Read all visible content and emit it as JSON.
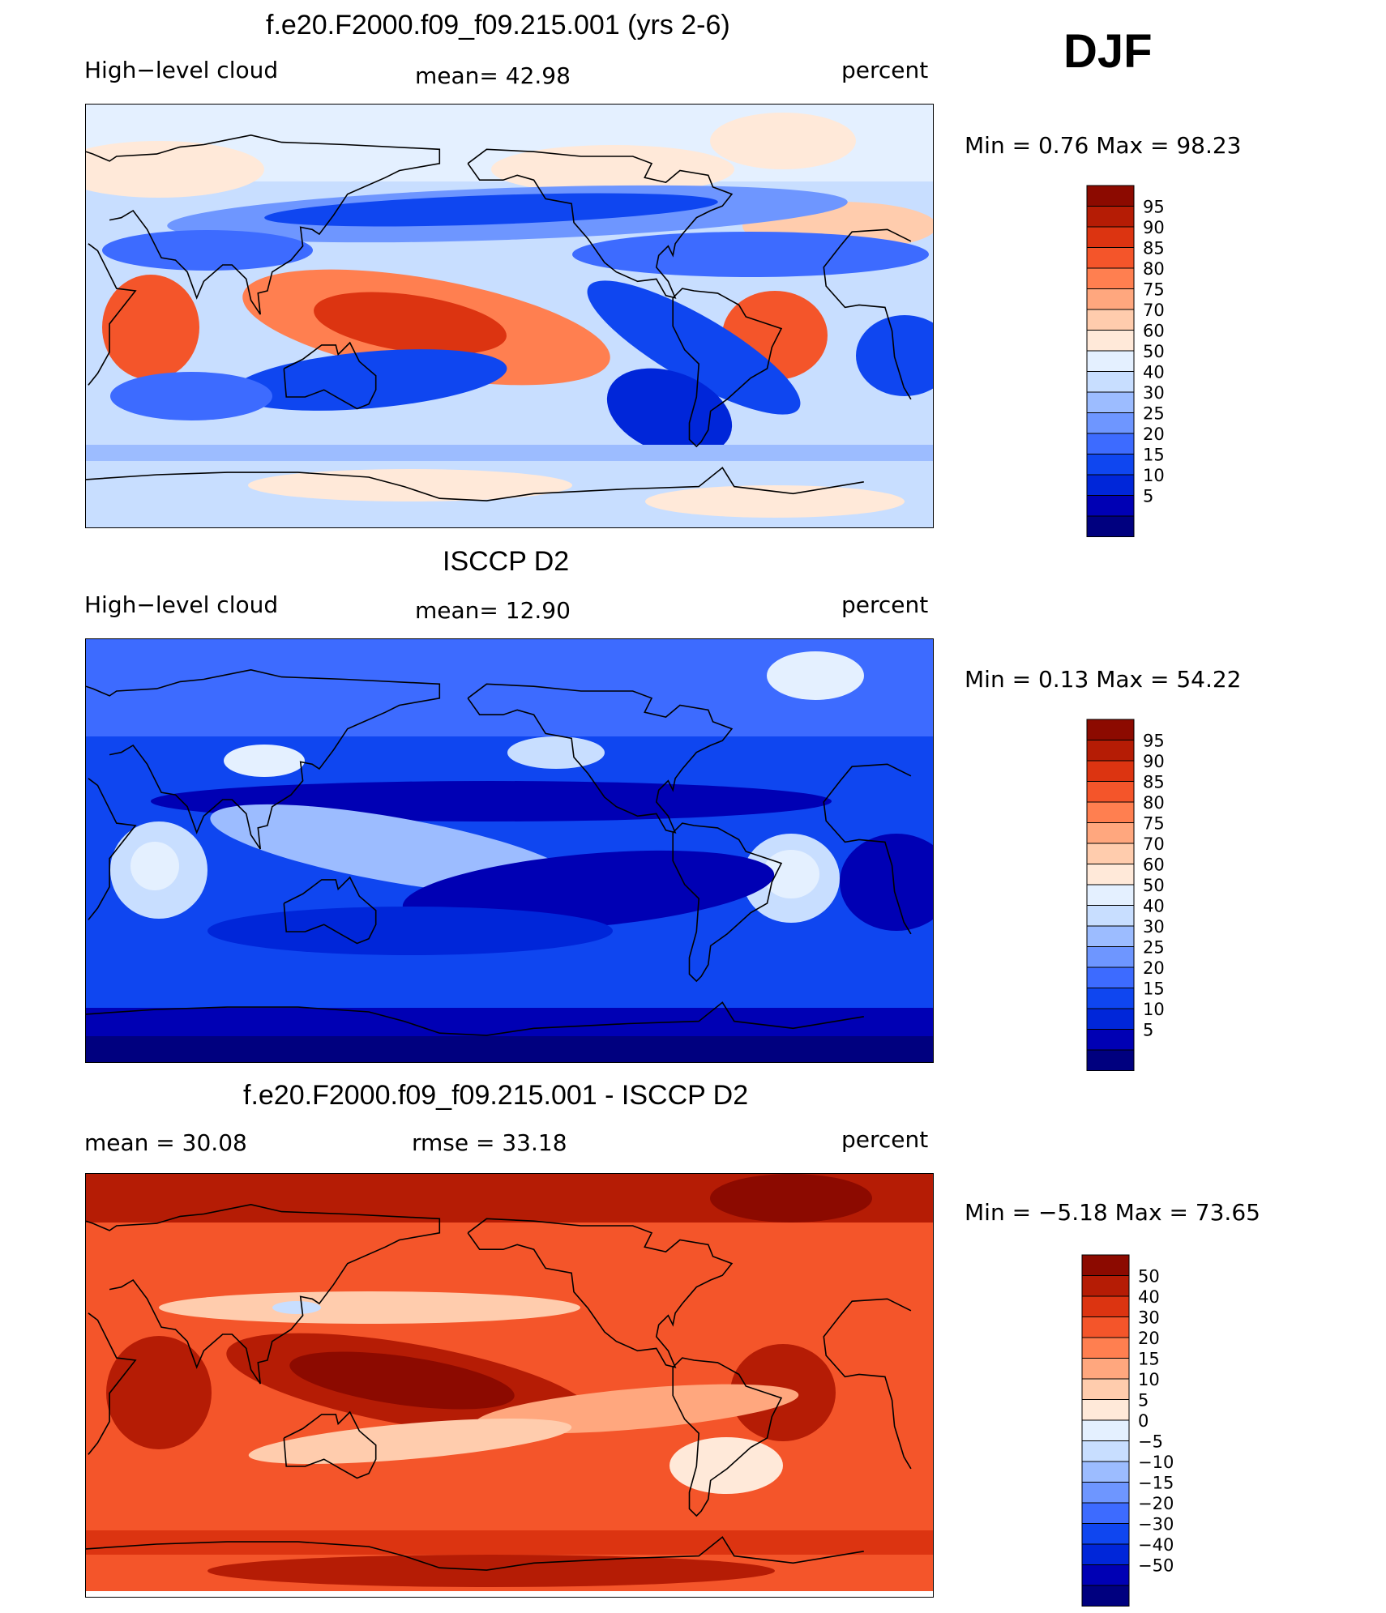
{
  "season": "DJF",
  "color_scales": {
    "abs": [
      "#00007f",
      "#0000b4",
      "#0026d9",
      "#0f46f0",
      "#3d6bff",
      "#6e96ff",
      "#9cbcff",
      "#c8deff",
      "#e4f0ff",
      "#ffe9d9",
      "#ffccad",
      "#ffa77e",
      "#ff7f50",
      "#f4552a",
      "#dc3411",
      "#b51c05",
      "#8c0a00"
    ],
    "diff": [
      "#00007f",
      "#0000b4",
      "#0026d9",
      "#0f46f0",
      "#3d6bff",
      "#6e96ff",
      "#9cbcff",
      "#c8deff",
      "#e4f0ff",
      "#ffe9d9",
      "#ffccad",
      "#ffa77e",
      "#ff7f50",
      "#f4552a",
      "#dc3411",
      "#b51c05",
      "#8c0a00"
    ]
  },
  "panels": [
    {
      "title": "f.e20.F2000.f09_f09.215.001 (yrs 2-6)",
      "left_label": "High−level cloud",
      "mid_label": "mean=   42.98",
      "right_label": "percent",
      "minmax": "Min =    0.76  Max  =    98.23",
      "colorbar_labels": [
        "95",
        "90",
        "85",
        "80",
        "75",
        "70",
        "60",
        "50",
        "40",
        "30",
        "25",
        "20",
        "15",
        "10",
        "5"
      ]
    },
    {
      "title": "ISCCP D2",
      "left_label": "High−level cloud",
      "mid_label": "mean=   12.90",
      "right_label": "percent",
      "minmax": "Min =    0.13  Max  =    54.22",
      "colorbar_labels": [
        "95",
        "90",
        "85",
        "80",
        "75",
        "70",
        "60",
        "50",
        "40",
        "30",
        "25",
        "20",
        "15",
        "10",
        "5"
      ]
    },
    {
      "title": "f.e20.F2000.f09_f09.215.001 - ISCCP D2",
      "left_label": "mean  =    30.08",
      "mid_label": "rmse  =    33.18",
      "right_label": "percent",
      "minmax": "Min =   −5.18  Max  =    73.65",
      "colorbar_labels": [
        "50",
        "40",
        "30",
        "20",
        "15",
        "10",
        "5",
        "0",
        "−5",
        "−10",
        "−15",
        "−20",
        "−30",
        "−40",
        "−50"
      ]
    }
  ],
  "chart_data": [
    {
      "type": "heatmap",
      "title": "f.e20.F2000.f09_f09.215.001 (yrs 2-6)",
      "variable": "High−level cloud",
      "units": "percent",
      "mean": 42.98,
      "min": 0.76,
      "max": 98.23,
      "season": "DJF",
      "contour_levels": [
        5,
        10,
        15,
        20,
        25,
        30,
        40,
        50,
        60,
        70,
        75,
        80,
        85,
        90,
        95
      ],
      "colorbar": "blue-to-red"
    },
    {
      "type": "heatmap",
      "title": "ISCCP D2",
      "variable": "High−level cloud",
      "units": "percent",
      "mean": 12.9,
      "min": 0.13,
      "max": 54.22,
      "season": "DJF",
      "contour_levels": [
        5,
        10,
        15,
        20,
        25,
        30,
        40,
        50,
        60,
        70,
        75,
        80,
        85,
        90,
        95
      ],
      "colorbar": "blue-to-red"
    },
    {
      "type": "heatmap",
      "title": "f.e20.F2000.f09_f09.215.001 - ISCCP D2",
      "units": "percent",
      "mean": 30.08,
      "rmse": 33.18,
      "min": -5.18,
      "max": 73.65,
      "season": "DJF",
      "contour_levels": [
        -50,
        -40,
        -30,
        -20,
        -15,
        -10,
        -5,
        0,
        5,
        10,
        15,
        20,
        30,
        40,
        50
      ],
      "colorbar": "blue-to-red"
    }
  ]
}
